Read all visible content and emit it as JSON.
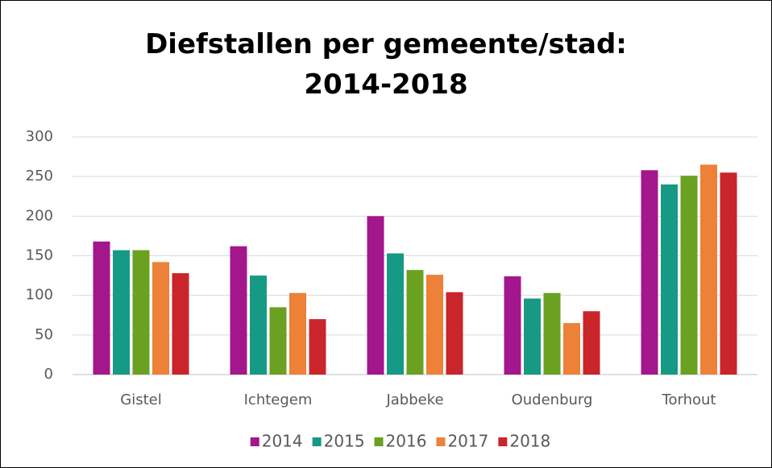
{
  "chart_data": {
    "type": "bar",
    "title": "Diefstallen per gemeente/stad: 2014-2018",
    "categories": [
      "Gistel",
      "Ichtegem",
      "Jabbeke",
      "Oudenburg",
      "Torhout"
    ],
    "series": [
      {
        "name": "2014",
        "color": "#a3168c",
        "values": [
          168,
          162,
          200,
          124,
          258
        ]
      },
      {
        "name": "2015",
        "color": "#169a85",
        "values": [
          157,
          125,
          153,
          96,
          240
        ]
      },
      {
        "name": "2016",
        "color": "#6aa121",
        "values": [
          157,
          85,
          132,
          103,
          251
        ]
      },
      {
        "name": "2017",
        "color": "#ec8137",
        "values": [
          142,
          103,
          126,
          65,
          265
        ]
      },
      {
        "name": "2018",
        "color": "#c9252b",
        "values": [
          128,
          70,
          104,
          80,
          255
        ]
      }
    ],
    "ylim": [
      0,
      300
    ],
    "yticks": [
      0,
      50,
      100,
      150,
      200,
      250,
      300
    ],
    "grid": true,
    "legend": "bottom"
  }
}
